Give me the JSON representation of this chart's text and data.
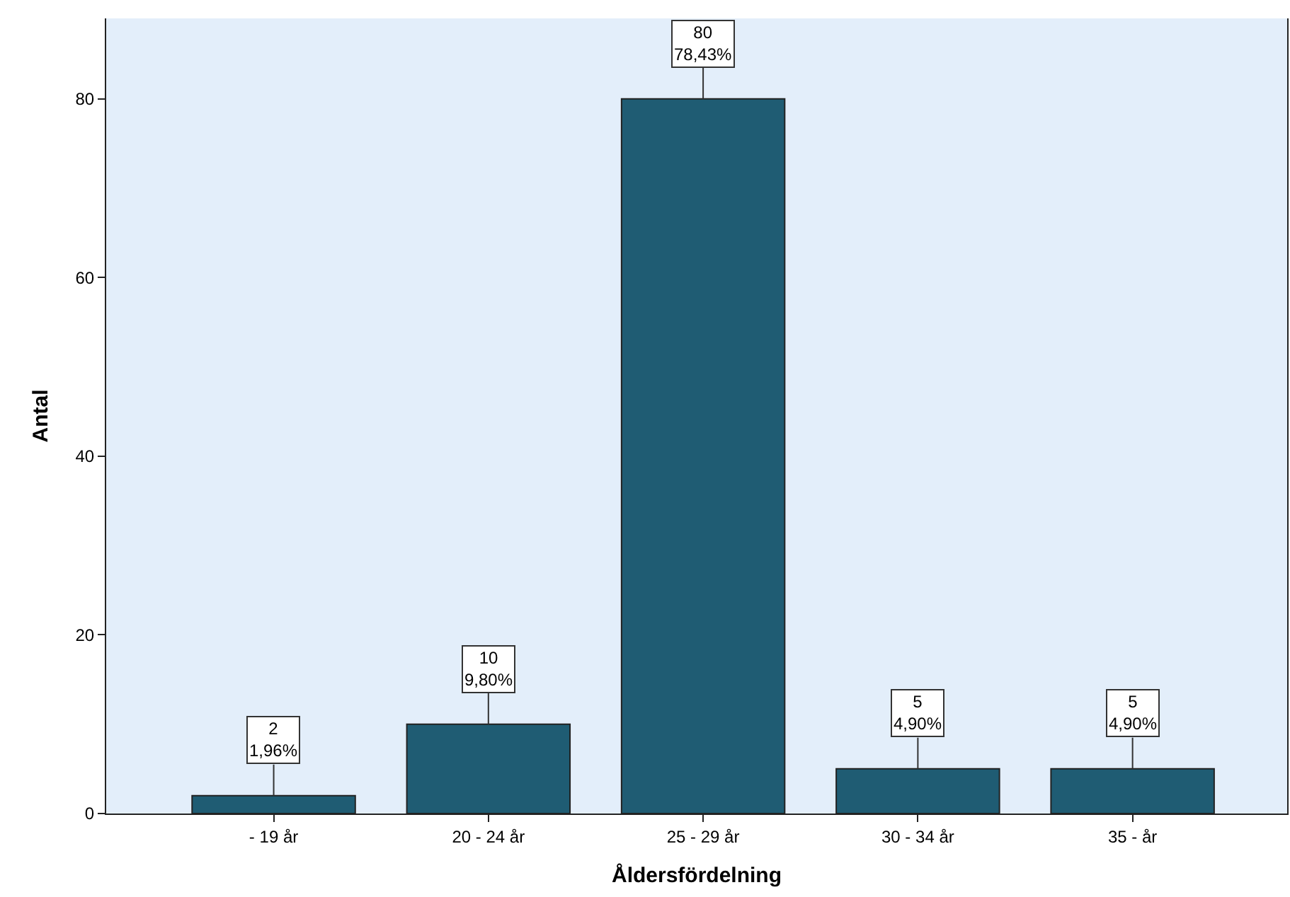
{
  "chart_data": {
    "type": "bar",
    "xlabel": "Åldersfördelning",
    "ylabel": "Antal",
    "categories": [
      "- 19 år",
      "20 - 24 år",
      "25 - 29 år",
      "30 - 34 år",
      "35 - år"
    ],
    "values": [
      2,
      10,
      80,
      5,
      5
    ],
    "value_labels": [
      "2\n1,96%",
      "10\n9,80%",
      "80\n78,43%",
      "5\n4,90%",
      "5\n4,90%"
    ],
    "color": "#1f5c73",
    "ylim": [
      0,
      89
    ],
    "yticks": [
      0,
      20,
      40,
      60,
      80
    ],
    "grid": false,
    "legend": false
  }
}
